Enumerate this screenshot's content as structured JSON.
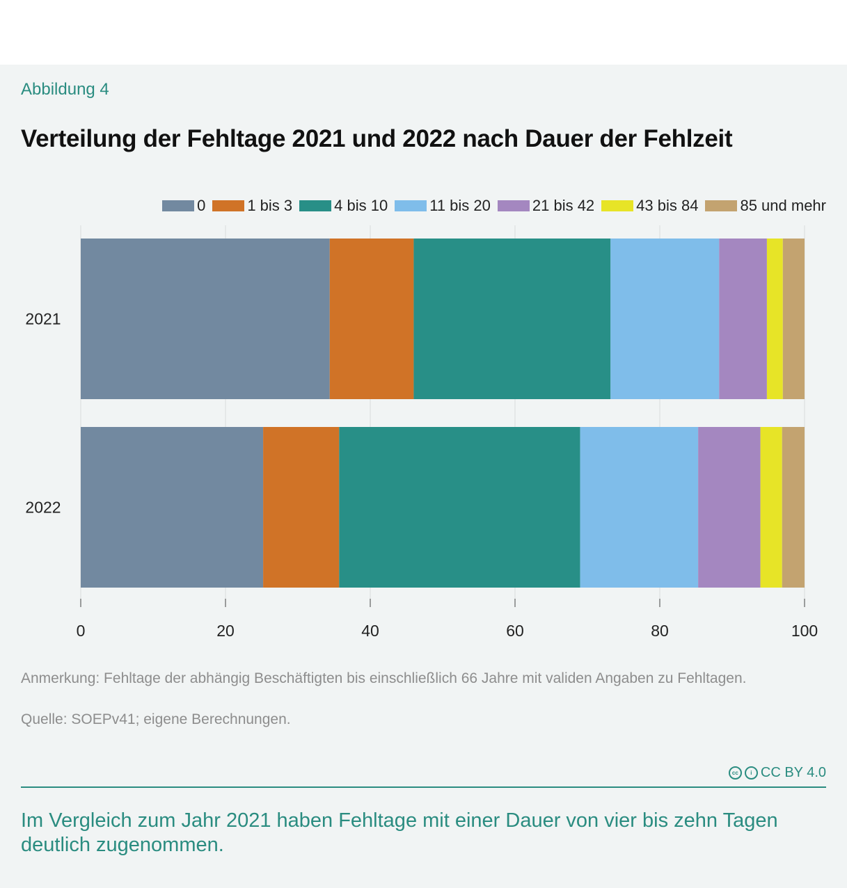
{
  "header": {
    "kicker": "Abbildung 4",
    "title": "Verteilung der Fehltage 2021 und 2022 nach Dauer der Fehlzeit"
  },
  "chart_data": {
    "type": "bar",
    "orientation": "horizontal",
    "stacked": true,
    "categories": [
      "2021",
      "2022"
    ],
    "series": [
      {
        "name": "0",
        "color": "#7289a0",
        "values": [
          34.4,
          25.2
        ]
      },
      {
        "name": "1 bis 3",
        "color": "#d07327",
        "values": [
          11.6,
          10.5
        ]
      },
      {
        "name": "4 bis 10",
        "color": "#288f87",
        "values": [
          27.2,
          33.3
        ]
      },
      {
        "name": "11 bis 20",
        "color": "#7fbdea",
        "values": [
          15.0,
          16.3
        ]
      },
      {
        "name": "21 bis 42",
        "color": "#a487c0",
        "values": [
          6.6,
          8.6
        ]
      },
      {
        "name": "43 bis 84",
        "color": "#e7e427",
        "values": [
          2.2,
          3.0
        ]
      },
      {
        "name": "85 und mehr",
        "color": "#c3a370",
        "values": [
          3.0,
          3.1
        ]
      }
    ],
    "xlim": [
      0,
      100
    ],
    "x_ticks": [
      "0",
      "20",
      "40",
      "60",
      "80",
      "100"
    ],
    "grid": true,
    "legend_position": "top"
  },
  "footer": {
    "note": "Anmerkung: Fehltage der abhängig Beschäftigten bis einschließlich 66 Jahre mit validen Angaben zu Fehltagen.",
    "source": "Quelle: SOEPv41; eigene Berechnungen.",
    "license": "CC BY 4.0",
    "takeaway": "Im Vergleich zum Jahr 2021 haben Fehltage mit einer Dauer von vier bis zehn Tagen deutlich zugenommen."
  }
}
